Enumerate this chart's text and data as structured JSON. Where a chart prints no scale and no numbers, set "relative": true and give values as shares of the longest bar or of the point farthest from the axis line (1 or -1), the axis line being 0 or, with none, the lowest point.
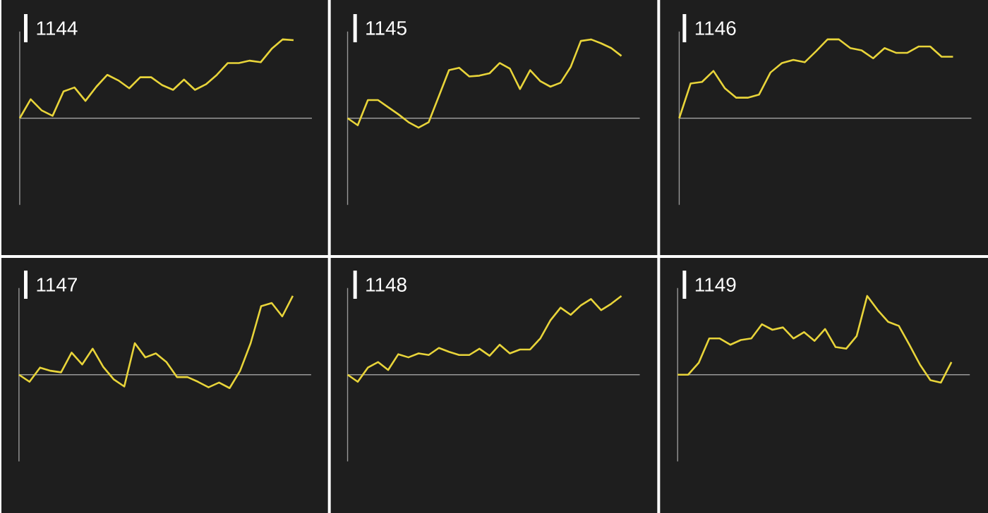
{
  "chart_data": [
    {
      "type": "line",
      "title": "1144",
      "relative": true,
      "color": "#e8d43a",
      "categories": [
        null,
        null,
        null,
        null,
        null,
        null,
        null,
        null,
        null,
        null,
        null,
        null,
        null,
        null,
        null,
        null,
        null,
        null,
        null,
        null,
        null,
        null,
        null,
        null,
        null,
        null
      ],
      "values": [
        0,
        0.24,
        0.1,
        0.03,
        0.34,
        0.39,
        0.22,
        0.4,
        0.55,
        0.48,
        0.38,
        0.52,
        0.52,
        0.42,
        0.36,
        0.49,
        0.36,
        0.43,
        0.55,
        0.7,
        0.7,
        0.73,
        0.71,
        0.88,
        1,
        0.99
      ]
    },
    {
      "type": "line",
      "title": "1145",
      "relative": true,
      "color": "#e8d43a",
      "categories": [
        null,
        null,
        null,
        null,
        null,
        null,
        null,
        null,
        null,
        null,
        null,
        null,
        null,
        null,
        null,
        null,
        null,
        null,
        null,
        null,
        null,
        null,
        null,
        null,
        null,
        null,
        null,
        null
      ],
      "values": [
        0,
        -0.09,
        0.23,
        0.23,
        0.14,
        0.05,
        -0.05,
        -0.12,
        -0.05,
        0.28,
        0.61,
        0.64,
        0.53,
        0.54,
        0.57,
        0.7,
        0.63,
        0.37,
        0.61,
        0.47,
        0.4,
        0.45,
        0.65,
        0.98,
        1,
        0.95,
        0.89,
        0.79
      ]
    },
    {
      "type": "line",
      "title": "1146",
      "relative": true,
      "color": "#e8d43a",
      "categories": [
        null,
        null,
        null,
        null,
        null,
        null,
        null,
        null,
        null,
        null,
        null,
        null,
        null,
        null,
        null,
        null,
        null,
        null,
        null,
        null,
        null,
        null,
        null,
        null,
        null
      ],
      "values": [
        0,
        0.44,
        0.46,
        0.6,
        0.38,
        0.26,
        0.26,
        0.3,
        0.58,
        0.7,
        0.74,
        0.71,
        0.85,
        1,
        1,
        0.89,
        0.86,
        0.76,
        0.89,
        0.83,
        0.83,
        0.91,
        0.91,
        0.78,
        0.78
      ]
    },
    {
      "type": "line",
      "title": "1147",
      "relative": true,
      "color": "#e8d43a",
      "categories": [
        null,
        null,
        null,
        null,
        null,
        null,
        null,
        null,
        null,
        null,
        null,
        null,
        null,
        null,
        null,
        null,
        null,
        null,
        null,
        null,
        null,
        null,
        null,
        null,
        null,
        null,
        null
      ],
      "values": [
        0,
        -0.09,
        0.09,
        0.05,
        0.03,
        0.28,
        0.13,
        0.33,
        0.1,
        -0.06,
        -0.15,
        0.4,
        0.22,
        0.27,
        0.16,
        -0.03,
        -0.03,
        -0.09,
        -0.16,
        -0.1,
        -0.17,
        0.05,
        0.4,
        0.87,
        0.91,
        0.74,
        1
      ]
    },
    {
      "type": "line",
      "title": "1148",
      "relative": true,
      "color": "#e8d43a",
      "categories": [
        null,
        null,
        null,
        null,
        null,
        null,
        null,
        null,
        null,
        null,
        null,
        null,
        null,
        null,
        null,
        null,
        null,
        null,
        null,
        null,
        null,
        null,
        null,
        null,
        null,
        null,
        null,
        null
      ],
      "values": [
        0,
        -0.09,
        0.09,
        0.16,
        0.06,
        0.26,
        0.22,
        0.27,
        0.25,
        0.34,
        0.29,
        0.25,
        0.25,
        0.33,
        0.24,
        0.38,
        0.27,
        0.32,
        0.32,
        0.46,
        0.69,
        0.85,
        0.76,
        0.88,
        0.96,
        0.82,
        0.9,
        1
      ]
    },
    {
      "type": "line",
      "title": "1149",
      "relative": true,
      "color": "#e8d43a",
      "categories": [
        null,
        null,
        null,
        null,
        null,
        null,
        null,
        null,
        null,
        null,
        null,
        null,
        null,
        null,
        null,
        null,
        null,
        null,
        null,
        null,
        null,
        null,
        null,
        null,
        null,
        null,
        null
      ],
      "values": [
        0,
        0,
        0.15,
        0.46,
        0.46,
        0.38,
        0.44,
        0.46,
        0.64,
        0.57,
        0.6,
        0.46,
        0.54,
        0.43,
        0.58,
        0.35,
        0.33,
        0.49,
        1,
        0.82,
        0.67,
        0.62,
        0.38,
        0.13,
        -0.07,
        -0.1,
        0.16
      ]
    }
  ]
}
